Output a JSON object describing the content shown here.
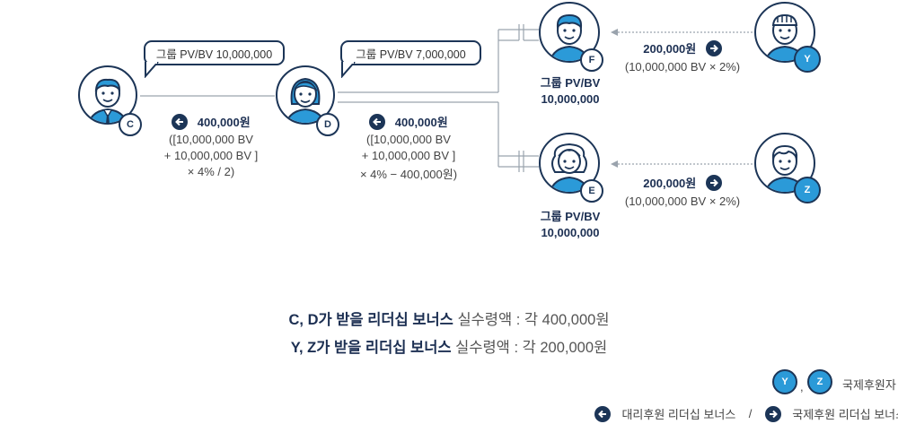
{
  "diagram": {
    "bubbles": {
      "c_group": "그룹 PV/BV 10,000,000",
      "d_group": "그룹 PV/BV 7,000,000"
    },
    "nodes": {
      "c": "C",
      "d": "D",
      "f": "F",
      "e": "E",
      "y": "Y",
      "z": "Z"
    },
    "c_bonus": {
      "amount": "400,000원",
      "line1": "([10,000,000 BV",
      "line2": "+ 10,000,000 BV ]",
      "line3": "× 4% / 2)"
    },
    "d_bonus": {
      "amount": "400,000원",
      "line1": "([10,000,000 BV",
      "line2": "+ 10,000,000 BV ]",
      "line3": "× 4% − 400,000원)"
    },
    "f_group": {
      "line1": "그룹 PV/BV",
      "line2": "10,000,000"
    },
    "e_group": {
      "line1": "그룹 PV/BV",
      "line2": "10,000,000"
    },
    "y_bonus": {
      "amount": "200,000원",
      "formula": "(10,000,000 BV × 2%)"
    },
    "z_bonus": {
      "amount": "200,000원",
      "formula": "(10,000,000 BV × 2%)"
    }
  },
  "summary": {
    "line1_bold": "C, D가 받을 리더십 보너스",
    "line1_rest": " 실수령액 : 각 400,000원",
    "line2_bold": "Y, Z가 받을 리더십 보너스",
    "line2_rest": " 실수령액 : 각 200,000원"
  },
  "legend": {
    "badge_y": "Y",
    "badge_z": "Z",
    "comma": ",",
    "international_sponsor": "국제후원자",
    "proxy_bonus": "대리후원 리더십 보너스",
    "separator": "/",
    "international_bonus": "국제후원 리더십 보너스"
  },
  "colors": {
    "navy": "#1c3557",
    "blue": "#2b9ad8",
    "skin": "#ffffff"
  }
}
